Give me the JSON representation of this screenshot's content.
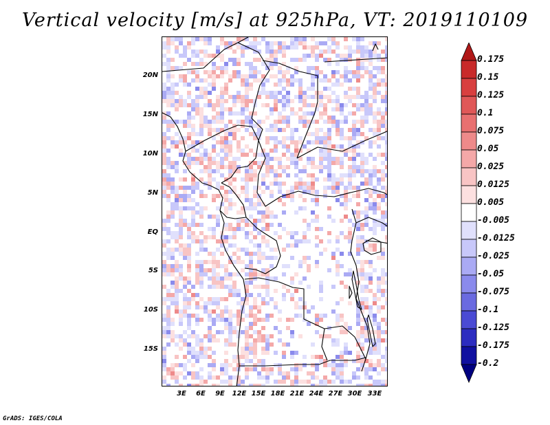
{
  "title": "Vertical velocity [m/s] at 925hPa, VT: 2019110109",
  "credit": "GrADS: IGES/COLA",
  "map": {
    "lat_labels": [
      "20N",
      "15N",
      "10N",
      "5N",
      "EQ",
      "5S",
      "10S",
      "15S"
    ],
    "lon_labels": [
      "3E",
      "6E",
      "9E",
      "12E",
      "15E",
      "18E",
      "21E",
      "24E",
      "27E",
      "30E",
      "33E"
    ]
  },
  "colorbar": {
    "labels": [
      "0.175",
      "0.15",
      "0.125",
      "0.1",
      "0.075",
      "0.05",
      "0.025",
      "0.0125",
      "0.005",
      "-0.005",
      "-0.0125",
      "-0.025",
      "-0.05",
      "-0.075",
      "-0.1",
      "-0.125",
      "-0.175",
      "-0.2"
    ],
    "colors": [
      "#b01818",
      "#c82a2a",
      "#d84040",
      "#e05858",
      "#e87070",
      "#ee8a8a",
      "#f4a8a8",
      "#f8c4c4",
      "#fce0e0",
      "#ffffff",
      "#e0e0fc",
      "#c8c8fa",
      "#aaaaf4",
      "#8a8aec",
      "#6a6ae0",
      "#4a4ad4",
      "#2c2cc0",
      "#1010a0",
      "#000080"
    ]
  }
}
